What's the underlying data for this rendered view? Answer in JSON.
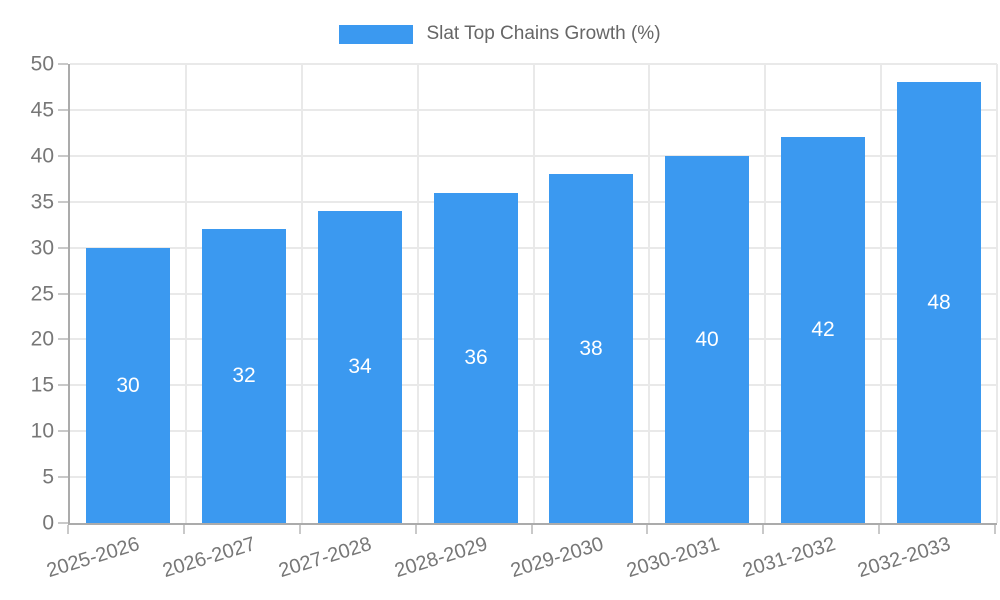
{
  "chart_data": {
    "type": "bar",
    "title": "",
    "legend": "Slat Top Chains Growth (%)",
    "legend_position": "top-center",
    "categories": [
      "2025-2026",
      "2026-2027",
      "2027-2028",
      "2028-2029",
      "2029-2030",
      "2030-2031",
      "2031-2032",
      "2032-2033"
    ],
    "values": [
      30,
      32,
      34,
      36,
      38,
      40,
      42,
      48
    ],
    "value_labels": [
      "30",
      "32",
      "34",
      "36",
      "38",
      "40",
      "42",
      "48"
    ],
    "y_tick_labels": [
      "0",
      "5",
      "10",
      "15",
      "20",
      "25",
      "30",
      "35",
      "40",
      "45",
      "50"
    ],
    "ylim": [
      0,
      50
    ],
    "ytick_step": 5,
    "grid": true,
    "bar_color": "#3b99f0",
    "value_label_color": "#ffffff",
    "axis_text_color": "#777777",
    "legend_text_color": "#666666",
    "gridline_color": "#e9e9e9",
    "axis_line_color": "#ababab"
  }
}
